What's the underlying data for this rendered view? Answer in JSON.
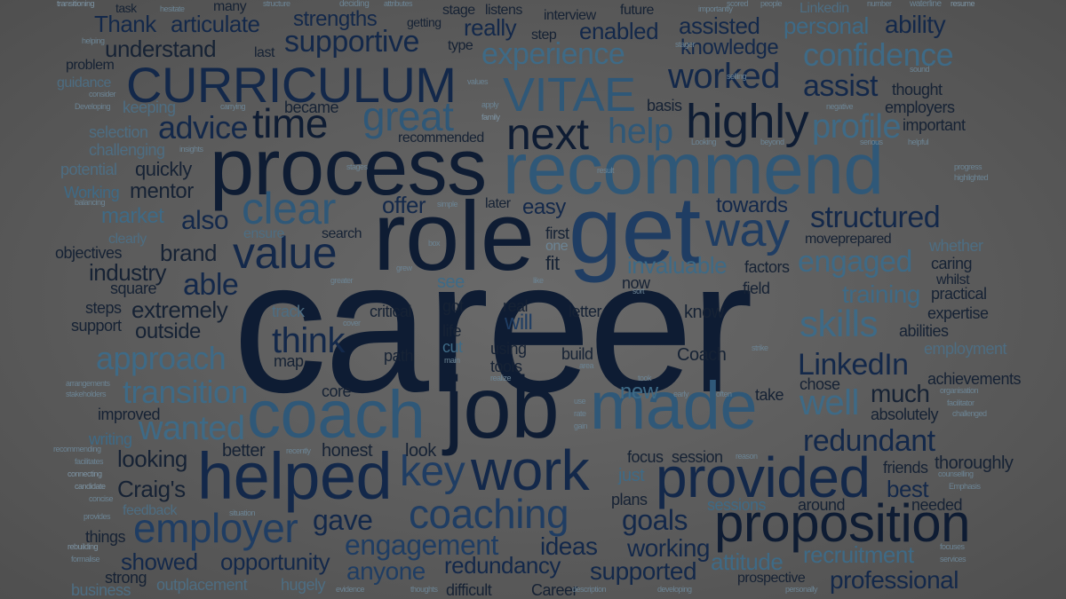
{
  "words": {
    "career": "career",
    "role": "role",
    "get": "get",
    "process": "process",
    "recommend": "recommend",
    "curriculum": "CURRICULUM",
    "vitae": "VITAE",
    "coach": "coach",
    "job": "job",
    "made": "made",
    "helped": "helped",
    "work": "work",
    "provided": "provided",
    "proposition": "proposition",
    "coaching": "coaching",
    "employer": "employer",
    "great": "great",
    "time": "time",
    "highly": "highly",
    "next": "next",
    "value": "value",
    "clear": "clear",
    "way": "way",
    "worked": "worked",
    "experience": "experience",
    "supportive": "supportive",
    "confidence": "confidence",
    "structured": "structured",
    "linkedin": "LinkedIn",
    "skills": "skills",
    "approach": "approach",
    "transition": "transition",
    "wanted": "wanted",
    "think": "think",
    "key": "key",
    "redundant": "redundant",
    "engagement": "engagement",
    "engaged": "engaged",
    "help": "help",
    "advice": "advice",
    "profile": "profile",
    "assist": "assist",
    "personal": "personal",
    "thank": "Thank",
    "articulate": "articulate",
    "strengths": "strengths",
    "understand": "understand",
    "really": "really",
    "enabled": "enabled",
    "assisted": "assisted",
    "ability": "ability",
    "knowledge": "knowledge",
    "gave": "gave",
    "goals": "goals",
    "craigs": "Craig's",
    "able": "able",
    "also": "also",
    "well": "well",
    "invaluable": "invaluable",
    "training": "training",
    "professional": "professional",
    "recruitment": "recruitment",
    "supported": "supported",
    "redundancy": "redundancy",
    "opportunity": "opportunity",
    "showed": "showed",
    "attitude": "attitude",
    "working": "working",
    "ideas": "ideas",
    "anyone": "anyone",
    "looking": "looking",
    "mentor": "mentor",
    "market": "market",
    "brand": "brand",
    "industry": "industry",
    "extremely": "extremely",
    "outside": "outside",
    "offer": "offer",
    "easy": "easy",
    "towards": "towards",
    "much": "much",
    "absolutely": "absolutely",
    "best": "best",
    "thoroughly": "thoroughly",
    "friends": "friends",
    "needed": "needed",
    "around": "around",
    "plans": "plans",
    "just": "just",
    "focus": "focus",
    "session": "session",
    "sessions": "sessions",
    "honest": "honest",
    "better": "better",
    "look": "look",
    "writing": "writing",
    "improved": "improved",
    "core": "core",
    "map": "map",
    "path": "path",
    "tools": "tools",
    "using": "using",
    "build": "build",
    "coach_cap": "Coach",
    "know": "know",
    "letter": "letter",
    "real": "real",
    "critical": "critical",
    "got": "got",
    "will": "will",
    "life": "life",
    "cut": "cut",
    "see": "see",
    "track": "track",
    "now": "now",
    "fit": "fit",
    "first": "first",
    "one": "one",
    "later": "later",
    "search": "search",
    "ensure": "ensure",
    "field": "field",
    "factors": "factors",
    "chose": "chose",
    "take": "take",
    "new": "new",
    "achievements": "achievements",
    "employment": "employment",
    "abilities": "abilities",
    "expertise": "expertise",
    "practical": "practical",
    "whilst": "whilst",
    "caring": "caring",
    "whether": "whether",
    "moveprepared": "moveprepared",
    "thought": "thought",
    "employers": "employers",
    "important": "important",
    "basis": "basis",
    "recommended": "recommended",
    "became": "became",
    "keeping": "keeping",
    "selection": "selection",
    "challenging": "challenging",
    "potential": "potential",
    "quickly": "quickly",
    "working_cap": "Working",
    "objectives": "objectives",
    "clearly": "clearly",
    "square": "square",
    "steps": "steps",
    "support": "support",
    "things": "things",
    "feedback": "feedback",
    "strong": "strong",
    "business": "business",
    "outplacement": "outplacement",
    "hugely": "hugely",
    "difficult": "difficult",
    "career_cap": "Career",
    "prospective": "prospective",
    "problem": "problem",
    "guidance": "guidance",
    "many": "many",
    "task": "task",
    "last": "last",
    "type": "type",
    "getting": "getting",
    "stage": "stage",
    "listens": "listens",
    "interview": "interview",
    "step": "step",
    "future": "future",
    "linkedin_lc": "Linkedin",
    "stager": "stager",
    "transitioning": "transitioning",
    "hesitate": "hesitate",
    "deciding": "deciding",
    "attributes": "attributes",
    "structure": "structure",
    "importantly": "importantly",
    "scored": "scored",
    "people": "people",
    "waterline": "waterline",
    "number": "number",
    "resume": "resume",
    "helping": "helping",
    "consider": "consider",
    "developing_cap": "Developing",
    "carrying": "carrying",
    "insights": "insights",
    "balancing": "balancing",
    "stages": "stages",
    "simple": "simple",
    "box": "box",
    "grew": "grew",
    "greater": "greater",
    "like": "like",
    "sort": "sort",
    "cover": "cover",
    "main": "main",
    "realize": "realize",
    "use": "use",
    "rate": "rate",
    "gain": "gain",
    "took": "took",
    "early": "early",
    "often": "often",
    "strike": "strike",
    "area": "area",
    "reason": "reason",
    "recently": "recently",
    "situation": "situation",
    "thoughts": "thoughts",
    "description": "description",
    "developing": "developing",
    "personally": "personally",
    "evidence": "evidence",
    "formalise": "formalise",
    "rebuilding": "rebuilding",
    "provides": "provides",
    "concise": "concise",
    "candidate": "candidate",
    "connecting": "connecting",
    "facilitates": "facilitates",
    "recommending": "recommending",
    "stakeholders": "stakeholders",
    "arrangements": "arrangements",
    "organisation": "organisation",
    "facilitator": "facilitator",
    "challenged": "challenged",
    "counselling": "counselling",
    "emphasis": "Emphasis",
    "focuses": "focuses",
    "services": "services",
    "progress": "progress",
    "highlighted": "highlighted",
    "sound": "sound",
    "negative": "negative",
    "serious": "serious",
    "helpful": "helpful",
    "looking_cap": "Looking",
    "beyond": "beyond",
    "selling": "selling",
    "apply": "apply",
    "family": "family",
    "values": "values",
    "result": "result"
  }
}
